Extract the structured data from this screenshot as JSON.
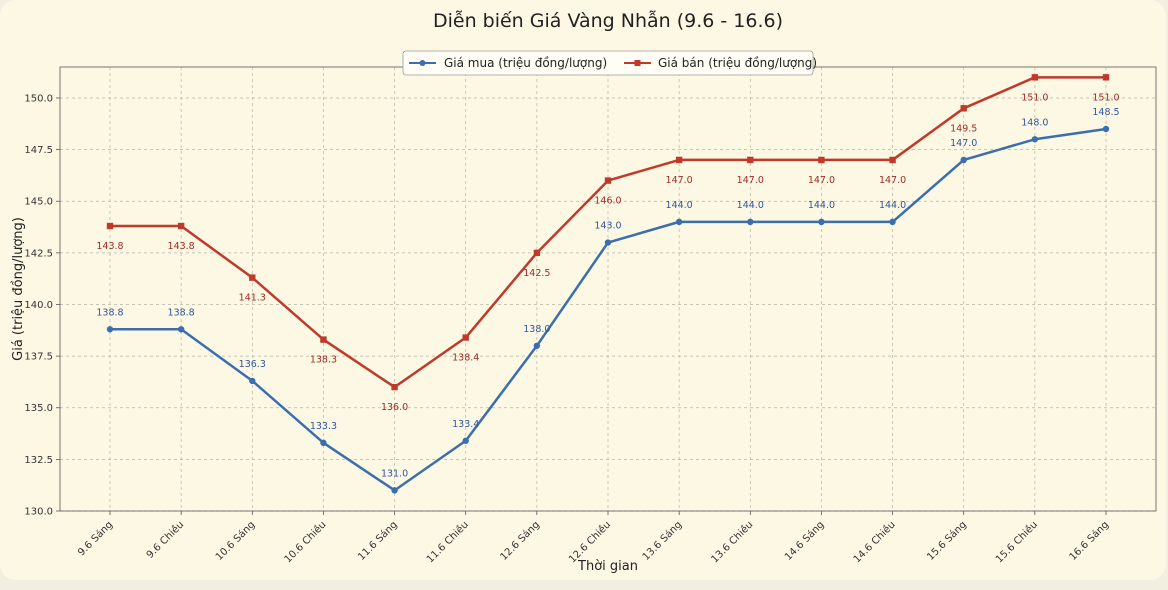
{
  "chart_data": {
    "type": "line",
    "title": "Diễn biến Giá Vàng Nhẫn (9.6 - 16.6)",
    "xlabel": "Thời gian",
    "ylabel": "Giá (triệu đồng/lượng)",
    "categories": [
      "9.6 Sáng",
      "9.6 Chiều",
      "10.6 Sáng",
      "10.6 Chiều",
      "11.6 Sáng",
      "11.6 Chiều",
      "12.6 Sáng",
      "12.6 Chiều",
      "13.6 Sáng",
      "13.6 Chiều",
      "14.6 Sáng",
      "14.6 Chiều",
      "15.6 Sáng",
      "15.6 Chiều",
      "16.6 Sáng"
    ],
    "ylim": [
      130.0,
      151.5
    ],
    "yticks": [
      "130.0",
      "132.5",
      "135.0",
      "137.5",
      "140.0",
      "142.5",
      "145.0",
      "147.5",
      "150.0"
    ],
    "grid": true,
    "legend_position": "top-center",
    "series": [
      {
        "name": "Giá mua (triệu đồng/lượng)",
        "color": "#3a6eb0",
        "marker": "circle",
        "values": [
          138.8,
          138.8,
          136.3,
          133.3,
          131.0,
          133.4,
          138.0,
          143.0,
          144.0,
          144.0,
          144.0,
          144.0,
          147.0,
          148.0,
          148.5
        ],
        "labels": [
          "138.8",
          "138.8",
          "136.3",
          "133.3",
          "131.0",
          "133.4",
          "138.0",
          "143.0",
          "144.0",
          "144.0",
          "144.0",
          "144.0",
          "147.0",
          "148.0",
          "148.5"
        ]
      },
      {
        "name": "Giá bán (triệu đồng/lượng)",
        "color": "#c0392b",
        "marker": "square",
        "values": [
          143.8,
          143.8,
          141.3,
          138.3,
          136.0,
          138.4,
          142.5,
          146.0,
          147.0,
          147.0,
          147.0,
          147.0,
          149.5,
          151.0,
          151.0
        ],
        "labels": [
          "143.8",
          "143.8",
          "141.3",
          "138.3",
          "136.0",
          "138.4",
          "142.5",
          "146.0",
          "147.0",
          "147.0",
          "147.0",
          "147.0",
          "149.5",
          "151.0",
          "151.0"
        ]
      }
    ]
  }
}
